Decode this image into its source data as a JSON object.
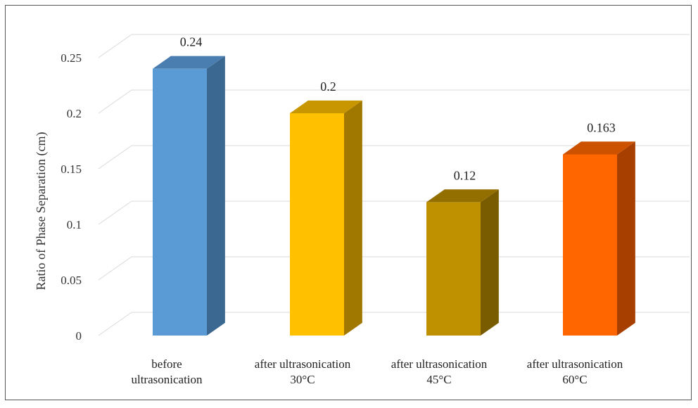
{
  "chart_data": {
    "type": "bar",
    "style": "3d-column",
    "title": "",
    "xlabel": "",
    "ylabel": "Ratio of Phase Separation (cm)",
    "ylim": [
      0,
      0.25
    ],
    "yticks": [
      "0",
      "0.05",
      "0.1",
      "0.15",
      "0.2",
      "0.25"
    ],
    "grid": true,
    "legend": "none",
    "categories": [
      [
        "before",
        "ultrasonication"
      ],
      [
        "after ultrasonication",
        "30°C"
      ],
      [
        "after ultrasonication",
        "45°C"
      ],
      [
        "after ultrasonication",
        "60°C"
      ]
    ],
    "values": [
      0.24,
      0.2,
      0.12,
      0.163
    ],
    "data_labels": [
      "0.24",
      "0.2",
      "0.12",
      "0.163"
    ],
    "colors": [
      {
        "front": "#5B9BD5",
        "side": "#3A6890",
        "top": "#4A7DB0"
      },
      {
        "front": "#FFC000",
        "side": "#A07800",
        "top": "#C79600"
      },
      {
        "front": "#BF9000",
        "side": "#7A5C00",
        "top": "#936F00"
      },
      {
        "front": "#FF6600",
        "side": "#A63F00",
        "top": "#CC5200"
      }
    ]
  }
}
